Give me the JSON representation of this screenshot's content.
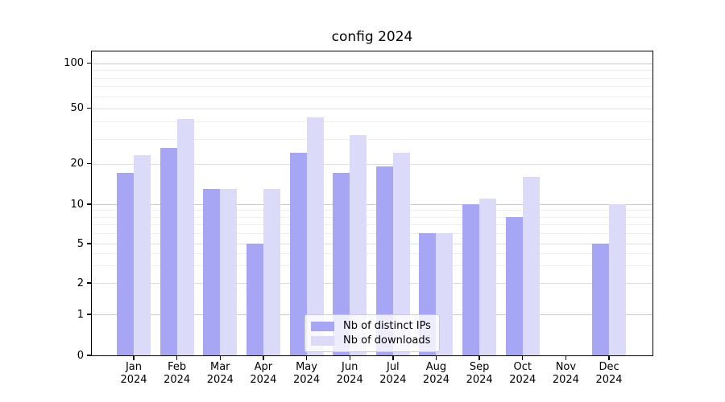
{
  "title": "config 2024",
  "chart_data": {
    "type": "bar",
    "title": "config 2024",
    "categories": [
      "Jan",
      "Feb",
      "Mar",
      "Apr",
      "May",
      "Jun",
      "Jul",
      "Aug",
      "Sep",
      "Oct",
      "Nov",
      "Dec"
    ],
    "category_year": "2024",
    "series": [
      {
        "name": "Nb of distinct IPs",
        "color": "#a6a6f4",
        "values": [
          17,
          26,
          13,
          5,
          24,
          17,
          19,
          6,
          10,
          8,
          0,
          5
        ]
      },
      {
        "name": "Nb of downloads",
        "color": "#dbdbf9",
        "values": [
          23,
          42,
          13,
          13,
          43,
          32,
          24,
          6,
          11,
          16,
          0,
          10
        ]
      }
    ],
    "yscale": "symlog",
    "yticks": [
      0,
      1,
      2,
      5,
      10,
      20,
      50,
      100
    ],
    "minor_yticks": [
      3,
      4,
      6,
      7,
      8,
      9,
      30,
      40,
      60,
      70,
      80,
      90
    ],
    "ylim": [
      0,
      130
    ],
    "grid": true,
    "legend_position": "lower center",
    "colors": {
      "grid_decade": "#c9c9c9",
      "grid_major": "#dddddd",
      "grid_minor": "#efefef",
      "axis": "#000000",
      "legend_border": "#cccccc"
    }
  }
}
